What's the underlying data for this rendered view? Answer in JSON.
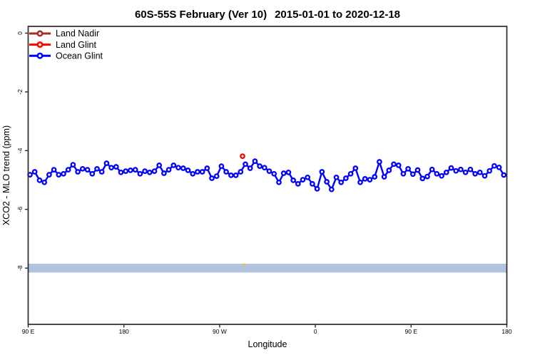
{
  "header": {
    "title_left": "60S-55S February (Ver 10)",
    "title_right": "2015-01-01 to 2020-12-18"
  },
  "chart_data": {
    "type": "line",
    "title": "60S-55S February (Ver 10)  2015-01-01 to 2020-12-18",
    "xlabel": "Longitude",
    "ylabel": "XCO2 - MLO trend (ppm)",
    "x_axis_unwrapped_degrees": [
      90,
      540
    ],
    "ylim": [
      -9.9,
      0.2
    ],
    "grid": false,
    "legend_position": "top-left",
    "x_ticks": [
      {
        "pos": 90,
        "label": "90 E"
      },
      {
        "pos": 180,
        "label": "180"
      },
      {
        "pos": 270,
        "label": "90 W"
      },
      {
        "pos": 360,
        "label": "0"
      },
      {
        "pos": 450,
        "label": "90 E"
      },
      {
        "pos": 540,
        "label": "180"
      }
    ],
    "y_ticks": [
      {
        "value": 0,
        "label": "0"
      },
      {
        "value": -2,
        "label": "-2"
      },
      {
        "value": -4,
        "label": "-4"
      },
      {
        "value": -6,
        "label": "-6"
      },
      {
        "value": -8,
        "label": "-8"
      }
    ],
    "legend": [
      {
        "label": "Land Nadir",
        "color": "#A52A2A",
        "marker": "open-circle-line"
      },
      {
        "label": "Land Glint",
        "color": "#FF0000",
        "marker": "open-circle-line"
      },
      {
        "label": "Ocean Glint",
        "color": "#0000FF",
        "marker": "open-circle-line"
      }
    ],
    "reference_band": {
      "center_ppm": -8,
      "half_width_ppm": 0.15,
      "color": "#B0C4DE"
    },
    "stray_mark": {
      "lon": 293,
      "ppm": -7.88,
      "color": "#E8C33A"
    },
    "series": [
      {
        "name": "Land Nadir",
        "color": "#A52A2A",
        "marker": "open-circle",
        "lon": [],
        "ppm": []
      },
      {
        "name": "Land Glint",
        "color": "#FF0000",
        "marker": "open-circle",
        "lon": [
          291.5
        ],
        "ppm": [
          -4.19
        ]
      },
      {
        "name": "Ocean Glint",
        "color": "#0000FF",
        "marker": "open-circle",
        "connected": true,
        "lon": [
          91.7,
          96.2,
          100.7,
          105.2,
          109.7,
          114.2,
          118.7,
          123.2,
          127.7,
          132.2,
          136.7,
          141.2,
          145.7,
          150.2,
          154.7,
          159.2,
          163.7,
          168.2,
          172.7,
          177.2,
          181.7,
          186.2,
          190.7,
          195.2,
          199.7,
          204.2,
          208.7,
          213.2,
          217.7,
          222.2,
          226.7,
          231.2,
          235.7,
          240.2,
          244.7,
          249.2,
          253.7,
          258.2,
          262.7,
          267.2,
          271.7,
          276.2,
          280.7,
          285.2,
          289.7,
          294.2,
          298.7,
          303.2,
          307.7,
          312.2,
          316.7,
          321.2,
          325.7,
          330.2,
          334.7,
          339.2,
          343.7,
          348.2,
          352.7,
          357.2,
          361.7,
          366.2,
          370.7,
          375.2,
          379.7,
          384.2,
          388.7,
          393.2,
          397.7,
          402.2,
          406.7,
          411.2,
          415.7,
          420.2,
          424.7,
          429.2,
          433.7,
          438.2,
          442.7,
          447.2,
          451.7,
          456.2,
          460.7,
          465.2,
          469.7,
          474.2,
          478.7,
          483.2,
          487.7,
          492.2,
          496.7,
          501.2,
          505.7,
          510.2,
          514.7,
          519.2,
          523.7,
          528.2,
          532.7,
          537.2
        ],
        "ppm": [
          -4.82,
          -4.72,
          -5.01,
          -5.08,
          -4.82,
          -4.65,
          -4.82,
          -4.79,
          -4.65,
          -4.48,
          -4.72,
          -4.62,
          -4.65,
          -4.79,
          -4.62,
          -4.72,
          -4.43,
          -4.58,
          -4.55,
          -4.74,
          -4.7,
          -4.67,
          -4.65,
          -4.79,
          -4.7,
          -4.74,
          -4.7,
          -4.5,
          -4.77,
          -4.65,
          -4.5,
          -4.58,
          -4.6,
          -4.67,
          -4.79,
          -4.72,
          -4.72,
          -4.6,
          -4.94,
          -4.87,
          -4.53,
          -4.72,
          -4.84,
          -4.84,
          -4.72,
          -4.46,
          -4.6,
          -4.36,
          -4.53,
          -4.58,
          -4.7,
          -4.79,
          -5.08,
          -4.77,
          -4.74,
          -5.01,
          -5.13,
          -4.99,
          -4.91,
          -5.13,
          -5.3,
          -4.72,
          -5.06,
          -5.32,
          -4.91,
          -5.08,
          -4.94,
          -4.79,
          -4.6,
          -5.08,
          -4.96,
          -4.99,
          -4.89,
          -4.38,
          -4.89,
          -4.67,
          -4.46,
          -4.5,
          -4.79,
          -4.62,
          -4.8,
          -4.66,
          -4.95,
          -4.88,
          -4.64,
          -4.79,
          -4.86,
          -4.74,
          -4.59,
          -4.69,
          -4.64,
          -4.74,
          -4.64,
          -4.79,
          -4.74,
          -4.86,
          -4.69,
          -4.52,
          -4.57,
          -4.83
        ]
      }
    ]
  }
}
